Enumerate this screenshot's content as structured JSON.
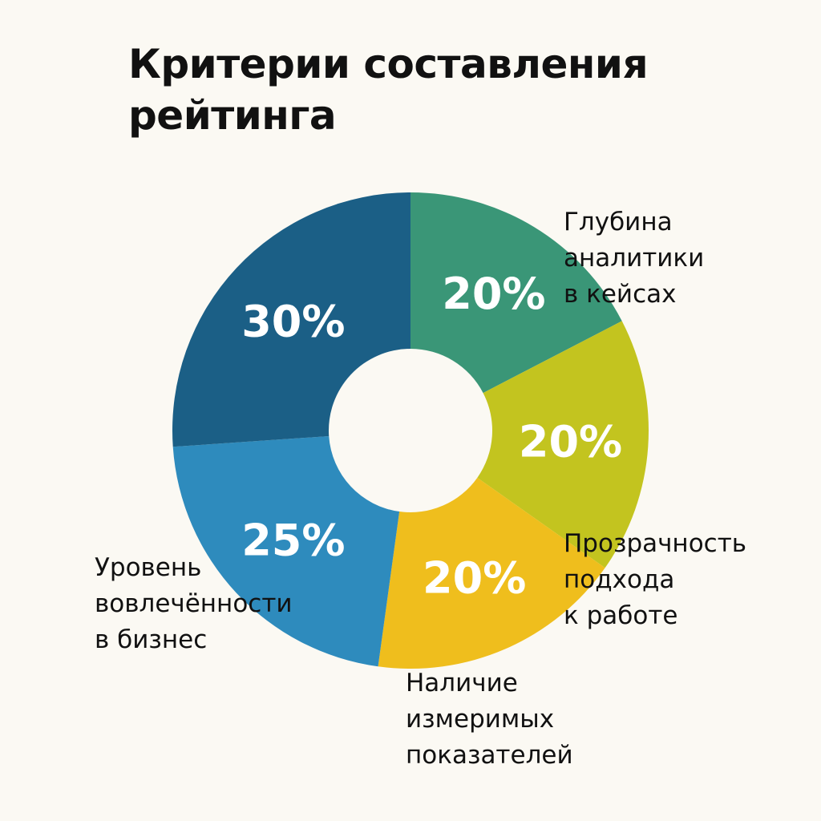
{
  "chart_data": {
    "type": "pie",
    "variant": "donut",
    "title_lines": [
      "Критерии составления",
      "рейтинга"
    ],
    "slices": [
      {
        "label_lines": [
          "Глубина",
          "аналитики",
          "в кейсах"
        ],
        "value": 20,
        "display": "20%",
        "color": "#3a9677"
      },
      {
        "label_lines": [
          "Прозрачность",
          "подхода",
          "к работе"
        ],
        "value": 20,
        "display": "20%",
        "color": "#c3c41f"
      },
      {
        "label_lines": [
          "Наличие",
          "измеримых",
          "показателей"
        ],
        "value": 20,
        "display": "20%",
        "color": "#efbe1d"
      },
      {
        "label_lines": [
          "Уровень",
          "вовлечённости",
          "в бизнес"
        ],
        "value": 25,
        "display": "25%",
        "color": "#2e8bbd"
      },
      {
        "label_lines": [],
        "value": 30,
        "display": "30%",
        "color": "#1b5f86"
      }
    ],
    "legend": "none"
  }
}
